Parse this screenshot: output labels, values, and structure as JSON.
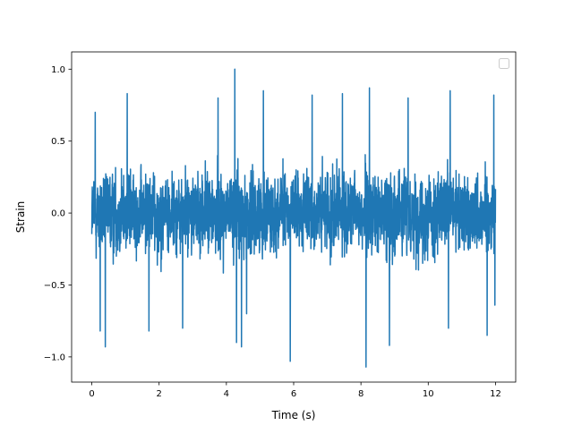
{
  "chart_data": {
    "type": "line",
    "title": "",
    "xlabel": "Time (s)",
    "ylabel": "Strain",
    "xlim": [
      -0.6,
      12.6
    ],
    "ylim": [
      -1.175,
      1.12
    ],
    "x_ticks": [
      0,
      2,
      4,
      6,
      8,
      10,
      12
    ],
    "y_ticks": [
      -1.0,
      -0.5,
      0.0,
      0.5,
      1.0
    ],
    "x_tick_labels": [
      "0",
      "2",
      "4",
      "6",
      "8",
      "10",
      "12"
    ],
    "y_tick_labels": [
      "−1.0",
      "−0.5",
      "0.0",
      "0.5",
      "1.0"
    ],
    "grid": false,
    "legend": {
      "placement": "upper right",
      "entries": []
    },
    "series": [
      {
        "color": "#1f77b4",
        "x_range": [
          0,
          12
        ],
        "typical_range": [
          -0.55,
          0.55
        ],
        "peaks": [
          {
            "x": 0.1,
            "y": 0.7
          },
          {
            "x": 0.25,
            "y": -0.82
          },
          {
            "x": 0.4,
            "y": -0.93
          },
          {
            "x": 1.05,
            "y": 0.83
          },
          {
            "x": 1.7,
            "y": -0.82
          },
          {
            "x": 2.7,
            "y": -0.8
          },
          {
            "x": 3.75,
            "y": 0.8
          },
          {
            "x": 4.25,
            "y": 1.0
          },
          {
            "x": 4.3,
            "y": -0.9
          },
          {
            "x": 4.45,
            "y": -0.93
          },
          {
            "x": 4.6,
            "y": -0.7
          },
          {
            "x": 5.1,
            "y": 0.85
          },
          {
            "x": 5.9,
            "y": -1.03
          },
          {
            "x": 6.55,
            "y": 0.82
          },
          {
            "x": 7.45,
            "y": 0.83
          },
          {
            "x": 8.15,
            "y": -1.07
          },
          {
            "x": 8.25,
            "y": 0.87
          },
          {
            "x": 8.85,
            "y": -0.92
          },
          {
            "x": 9.4,
            "y": 0.8
          },
          {
            "x": 10.6,
            "y": -0.8
          },
          {
            "x": 10.65,
            "y": 0.85
          },
          {
            "x": 11.75,
            "y": -0.85
          },
          {
            "x": 11.95,
            "y": 0.82
          },
          {
            "x": 11.98,
            "y": -0.64
          }
        ]
      }
    ]
  }
}
